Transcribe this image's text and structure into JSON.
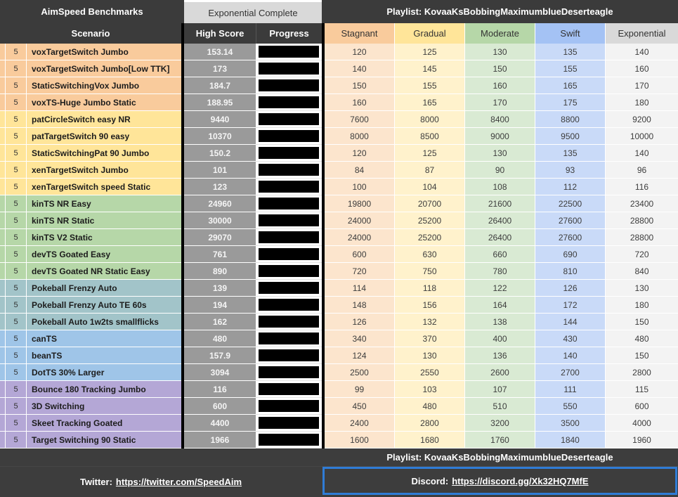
{
  "header": {
    "left_title": "AimSpeed Benchmarks",
    "center_title": "Exponential Complete",
    "right_title": "Playlist: KovaaKsBobbingMaximumblueDeserteagle",
    "col_scenario": "Scenario",
    "col_high_score": "High Score",
    "col_progress": "Progress",
    "tiers": [
      "Stagnant",
      "Gradual",
      "Moderate",
      "Swift",
      "Exponential"
    ]
  },
  "rows": [
    {
      "count": "5",
      "name": "voxTargetSwitch Jumbo",
      "group": "orange",
      "high": "153.14",
      "progress": 1,
      "tiers": [
        "120",
        "125",
        "130",
        "135",
        "140"
      ]
    },
    {
      "count": "5",
      "name": "voxTargetSwitch Jumbo[Low TTK]",
      "group": "orange",
      "high": "173",
      "progress": 1,
      "tiers": [
        "140",
        "145",
        "150",
        "155",
        "160"
      ]
    },
    {
      "count": "5",
      "name": "StaticSwitchingVox Jumbo",
      "group": "orange",
      "high": "184.7",
      "progress": 1,
      "tiers": [
        "150",
        "155",
        "160",
        "165",
        "170"
      ]
    },
    {
      "count": "5",
      "name": "voxTS-Huge Jumbo Static",
      "group": "orange",
      "high": "188.95",
      "progress": 1,
      "tiers": [
        "160",
        "165",
        "170",
        "175",
        "180"
      ]
    },
    {
      "count": "5",
      "name": "patCircleSwitch easy NR",
      "group": "yellow",
      "high": "9440",
      "progress": 1,
      "tiers": [
        "7600",
        "8000",
        "8400",
        "8800",
        "9200"
      ]
    },
    {
      "count": "5",
      "name": "patTargetSwitch 90 easy",
      "group": "yellow",
      "high": "10370",
      "progress": 1,
      "tiers": [
        "8000",
        "8500",
        "9000",
        "9500",
        "10000"
      ]
    },
    {
      "count": "5",
      "name": "StaticSwitchingPat 90 Jumbo",
      "group": "yellow",
      "high": "150.2",
      "progress": 1,
      "tiers": [
        "120",
        "125",
        "130",
        "135",
        "140"
      ]
    },
    {
      "count": "5",
      "name": "xenTargetSwitch Jumbo",
      "group": "yellow",
      "high": "101",
      "progress": 1,
      "tiers": [
        "84",
        "87",
        "90",
        "93",
        "96"
      ]
    },
    {
      "count": "5",
      "name": "xenTargetSwitch speed Static",
      "group": "yellow",
      "high": "123",
      "progress": 1,
      "tiers": [
        "100",
        "104",
        "108",
        "112",
        "116"
      ]
    },
    {
      "count": "5",
      "name": "kinTS NR  Easy",
      "group": "green",
      "high": "24960",
      "progress": 1,
      "tiers": [
        "19800",
        "20700",
        "21600",
        "22500",
        "23400"
      ]
    },
    {
      "count": "5",
      "name": "kinTS NR Static",
      "group": "green",
      "high": "30000",
      "progress": 1,
      "tiers": [
        "24000",
        "25200",
        "26400",
        "27600",
        "28800"
      ]
    },
    {
      "count": "5",
      "name": "kinTS V2 Static",
      "group": "green",
      "high": "29070",
      "progress": 1,
      "tiers": [
        "24000",
        "25200",
        "26400",
        "27600",
        "28800"
      ]
    },
    {
      "count": "5",
      "name": "devTS Goated Easy",
      "group": "green",
      "high": "761",
      "progress": 1,
      "tiers": [
        "600",
        "630",
        "660",
        "690",
        "720"
      ]
    },
    {
      "count": "5",
      "name": "devTS Goated NR Static Easy",
      "group": "green",
      "high": "890",
      "progress": 1,
      "tiers": [
        "720",
        "750",
        "780",
        "810",
        "840"
      ]
    },
    {
      "count": "5",
      "name": "Pokeball Frenzy Auto",
      "group": "teal",
      "high": "139",
      "progress": 1,
      "tiers": [
        "114",
        "118",
        "122",
        "126",
        "130"
      ]
    },
    {
      "count": "5",
      "name": "Pokeball Frenzy Auto TE 60s",
      "group": "teal",
      "high": "194",
      "progress": 1,
      "tiers": [
        "148",
        "156",
        "164",
        "172",
        "180"
      ]
    },
    {
      "count": "5",
      "name": "Pokeball Auto 1w2ts smallflicks",
      "group": "teal",
      "high": "162",
      "progress": 1,
      "tiers": [
        "126",
        "132",
        "138",
        "144",
        "150"
      ]
    },
    {
      "count": "5",
      "name": "canTS",
      "group": "blue",
      "high": "480",
      "progress": 1,
      "tiers": [
        "340",
        "370",
        "400",
        "430",
        "480"
      ]
    },
    {
      "count": "5",
      "name": "beanTS",
      "group": "blue",
      "high": "157.9",
      "progress": 1,
      "tiers": [
        "124",
        "130",
        "136",
        "140",
        "150"
      ]
    },
    {
      "count": "5",
      "name": "DotTS 30% Larger",
      "group": "blue",
      "high": "3094",
      "progress": 1,
      "tiers": [
        "2500",
        "2550",
        "2600",
        "2700",
        "2800"
      ]
    },
    {
      "count": "5",
      "name": "Bounce 180 Tracking Jumbo",
      "group": "purple",
      "high": "116",
      "progress": 1,
      "tiers": [
        "99",
        "103",
        "107",
        "111",
        "115"
      ]
    },
    {
      "count": "5",
      "name": "3D Switching",
      "group": "purple",
      "high": "600",
      "progress": 1,
      "tiers": [
        "450",
        "480",
        "510",
        "550",
        "600"
      ]
    },
    {
      "count": "5",
      "name": "Skeet Tracking Goated",
      "group": "purple",
      "high": "4400",
      "progress": 1,
      "tiers": [
        "2400",
        "2800",
        "3200",
        "3500",
        "4000"
      ]
    },
    {
      "count": "5",
      "name": "Target Switching 90 Static",
      "group": "purple",
      "high": "1966",
      "progress": 1,
      "tiers": [
        "1600",
        "1680",
        "1760",
        "1840",
        "1960"
      ]
    }
  ],
  "footer": {
    "twitter_prefix": "Twitter:",
    "twitter_link": "https://twitter.com/SpeedAim",
    "playlist": "Playlist: KovaaKsBobbingMaximumblueDeserteagle",
    "discord_prefix": "Discord:",
    "discord_link": "https://discord.gg/Xk32HQ7MfE"
  },
  "colors": {
    "dark_header": "#3b3b3b",
    "footer_bg": "#3d3d3d",
    "subheader_bg": "#d9d9d9",
    "black_border": "#000000",
    "high_score_bg": "#9a9a9a",
    "progress_bar": "#000000",
    "accent_blue": "#2f7cd6",
    "groups": {
      "orange": "#f9cb9c",
      "yellow": "#ffe599",
      "green": "#b6d7a8",
      "teal": "#a2c4c9",
      "blue": "#9fc5e8",
      "purple": "#b4a7d6"
    },
    "tier_headers": [
      "#f9cb9c",
      "#ffe599",
      "#b6d7a8",
      "#a4c2f4",
      "#d9d9d9"
    ],
    "tier_cells": [
      "#fce5cd",
      "#fff2cc",
      "#d9ead3",
      "#c9daf8",
      "#f3f3f3"
    ]
  }
}
